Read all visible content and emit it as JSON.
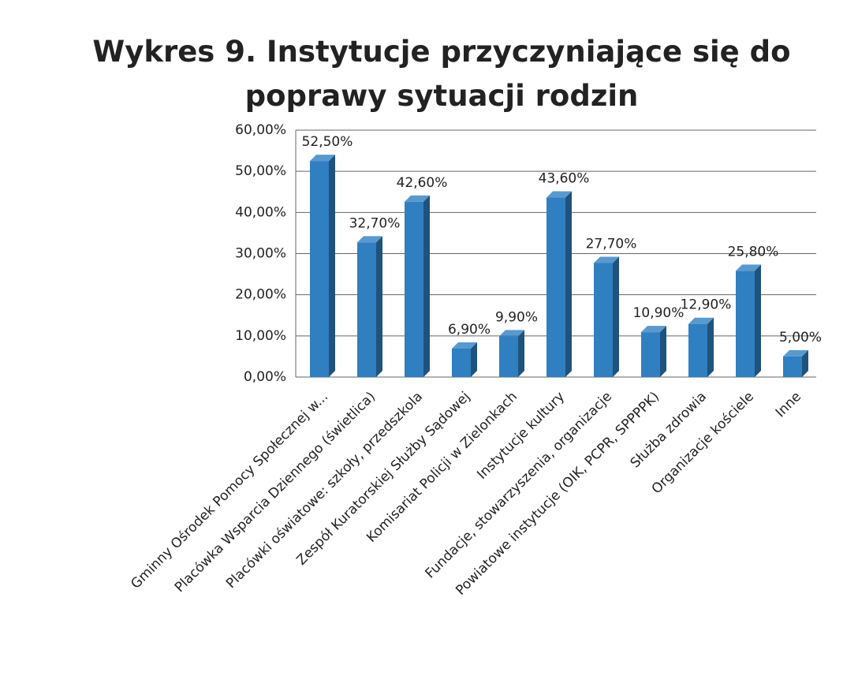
{
  "chart_data": {
    "type": "bar",
    "title": "Wykres 9. Instytucje przyczyniające się do poprawy sytuacji rodzin",
    "categories": [
      "Gminny Ośrodek Pomocy Społecznej w...",
      "Placówka Wsparcia Dziennego (świetlica)",
      "Placówki oświatowe: szkoły, przedszkola",
      "Zespół Kuratorskiej Służby Sądowej",
      "Komisariat Policji w Zielonkach",
      "Instytucje kultury",
      "Fundacje, stowarzyszenia, organizacje",
      "Powiatowe instytucje (OIK, PCPR, SPPPPK)",
      "Służba zdrowia",
      "Organizacje kościele",
      "Inne"
    ],
    "values": [
      52.5,
      32.7,
      42.6,
      6.9,
      9.9,
      43.6,
      27.7,
      10.9,
      12.9,
      25.8,
      5.0
    ],
    "value_labels": [
      "52,50%",
      "32,70%",
      "42,60%",
      "6,90%",
      "9,90%",
      "43,60%",
      "27,70%",
      "10,90%",
      "12,90%",
      "25,80%",
      "5,00%"
    ],
    "color": "#2f7fc1",
    "ylim": [
      0,
      60
    ],
    "yticks": [
      {
        "value": 0,
        "label": "0,00%"
      },
      {
        "value": 10,
        "label": "10,00%"
      },
      {
        "value": 20,
        "label": "20,00%"
      },
      {
        "value": 30,
        "label": "30,00%"
      },
      {
        "value": 40,
        "label": "40,00%"
      },
      {
        "value": 50,
        "label": "50,00%"
      },
      {
        "value": 60,
        "label": "60,00%"
      }
    ],
    "grid": true
  }
}
